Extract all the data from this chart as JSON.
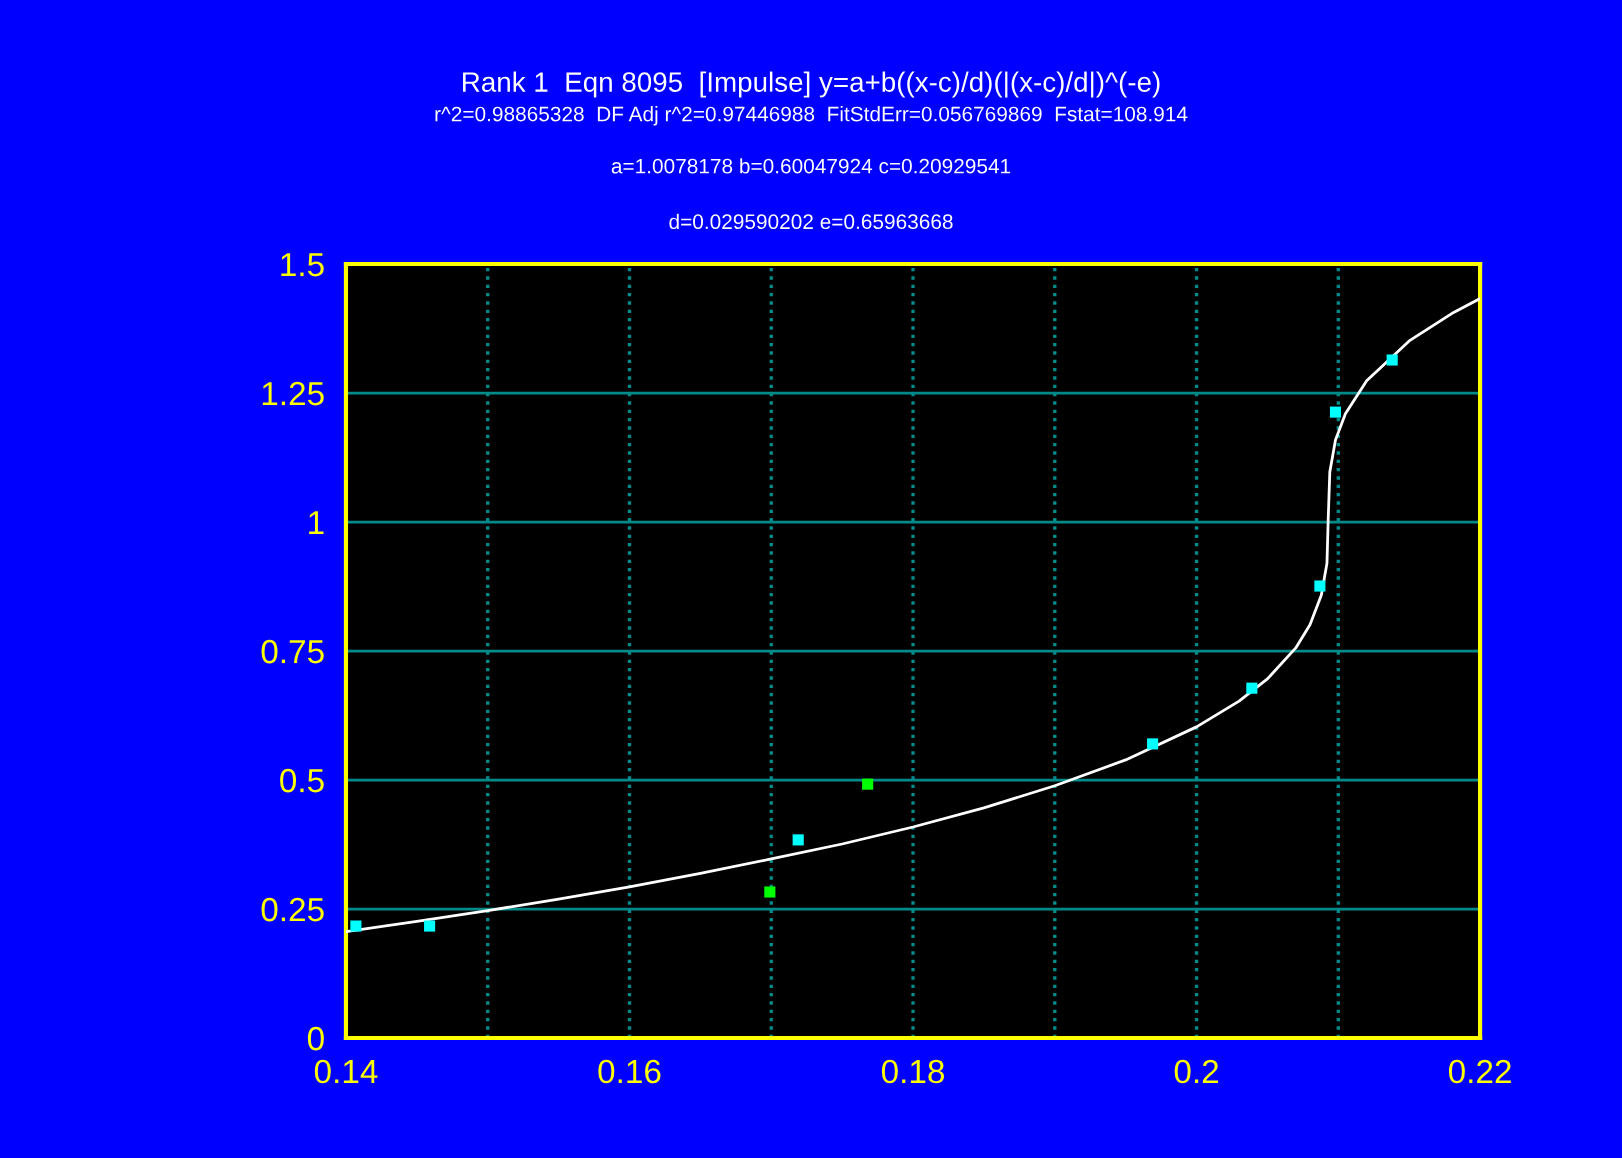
{
  "chart_data": {
    "type": "scatter",
    "title": "Rank 1  Eqn 8095  [Impulse] y=a+b((x-c)/d)(|(x-c)/d|)^(-e)",
    "subtitle": "r^2=0.98865328  DF Adj r^2=0.97446988  FitStdErr=0.056769869  Fstat=108.914",
    "annotations": [
      "a=1.0078178 b=0.60047924 c=0.20929541",
      "d=0.029590202 e=0.65963668"
    ],
    "series": [
      {
        "type": "line",
        "marker": "none",
        "color": "#ffffff",
        "x": [
          0.14,
          0.145,
          0.15,
          0.155,
          0.16,
          0.165,
          0.17,
          0.175,
          0.18,
          0.185,
          0.19,
          0.195,
          0.2,
          0.203,
          0.205,
          0.207,
          0.208,
          0.2088,
          0.2092,
          0.20929,
          0.2094,
          0.2098,
          0.2105,
          0.212,
          0.215,
          0.218,
          0.22
        ],
        "values": [
          0.206,
          0.226,
          0.247,
          0.269,
          0.293,
          0.319,
          0.347,
          0.376,
          0.409,
          0.446,
          0.489,
          0.539,
          0.603,
          0.653,
          0.696,
          0.756,
          0.801,
          0.858,
          0.92,
          1.008,
          1.097,
          1.159,
          1.21,
          1.274,
          1.351,
          1.404,
          1.433
        ]
      },
      {
        "color": "#00ffff",
        "x": [
          0.1407,
          0.1459,
          0.1719,
          0.1969,
          0.2039,
          0.2087,
          0.2098,
          0.2138
        ],
        "values": [
          0.217,
          0.217,
          0.384,
          0.57,
          0.678,
          0.876,
          1.213,
          1.314
        ]
      },
      {
        "color": "#00ff00",
        "x": [
          0.1699,
          0.1768
        ],
        "values": [
          0.283,
          0.492
        ]
      }
    ],
    "marker": "square",
    "grid": true,
    "xlim": [
      0.14,
      0.22
    ],
    "xticks": [
      0.14,
      {
        "value": 0.15,
        "label": null
      },
      0.16,
      {
        "value": 0.17,
        "label": null
      },
      0.18,
      {
        "value": 0.19,
        "label": null
      },
      0.2,
      {
        "value": 0.21,
        "label": null
      },
      0.22
    ],
    "ylim": [
      0,
      1.5
    ],
    "yticks": [
      0,
      0.25,
      0.5,
      0.75,
      1,
      1.25,
      1.5
    ]
  }
}
